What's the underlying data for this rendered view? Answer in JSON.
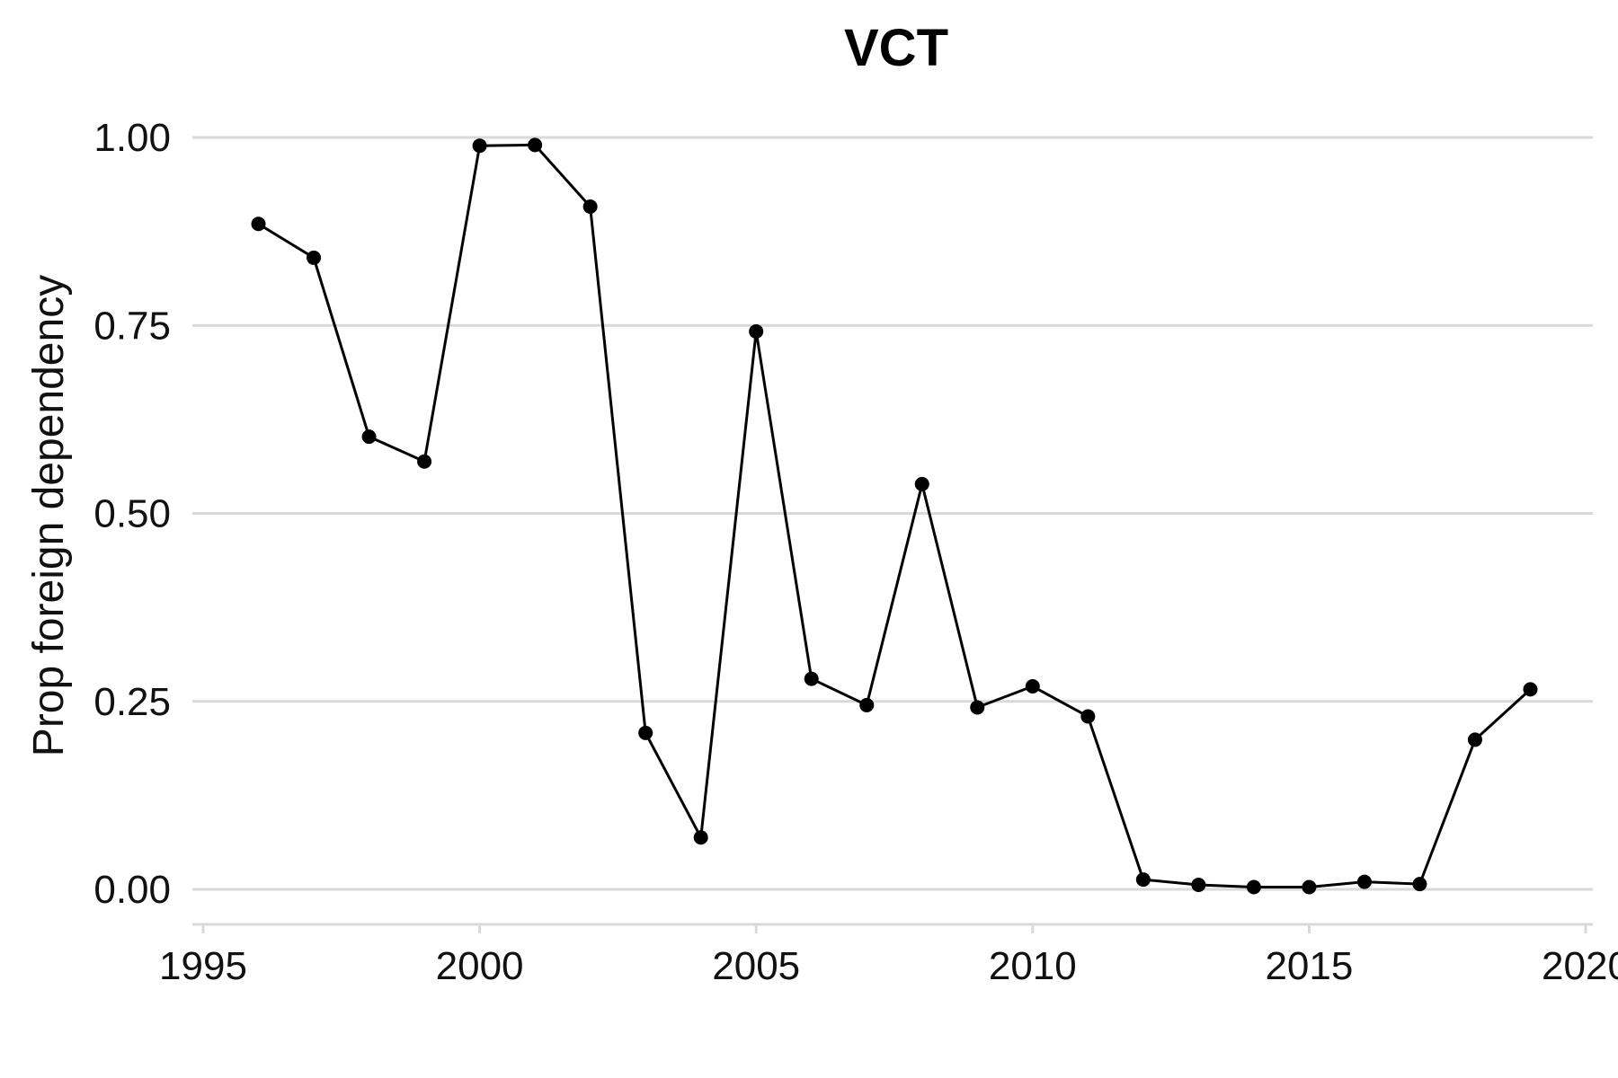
{
  "chart_data": {
    "type": "line",
    "title": "VCT",
    "xlabel": "",
    "ylabel": "Prop foreign dependency",
    "xlim": [
      1995,
      2020
    ],
    "ylim": [
      0,
      1
    ],
    "x_ticks": [
      1995,
      2000,
      2005,
      2010,
      2015,
      2020
    ],
    "x_tick_labels": [
      "1995",
      "2000",
      "2005",
      "2010",
      "2015",
      "2020"
    ],
    "y_ticks": [
      0,
      0.25,
      0.5,
      0.75,
      1.0
    ],
    "y_tick_labels": [
      "0.00",
      "0.25",
      "0.50",
      "0.75",
      "1.00"
    ],
    "grid": "horizontal",
    "series": [
      {
        "color": "#000000",
        "x": [
          1996,
          1997,
          1998,
          1999,
          2000,
          2001,
          2002,
          2003,
          2004,
          2005,
          2006,
          2007,
          2008,
          2009,
          2010,
          2011,
          2012,
          2013,
          2014,
          2015,
          2016,
          2017,
          2018,
          2019
        ],
        "y": [
          0.885,
          0.84,
          0.602,
          0.569,
          0.989,
          0.99,
          0.908,
          0.208,
          0.069,
          0.742,
          0.28,
          0.245,
          0.539,
          0.242,
          0.27,
          0.23,
          0.013,
          0.006,
          0.003,
          0.003,
          0.01,
          0.007,
          0.199,
          0.266
        ]
      }
    ]
  }
}
